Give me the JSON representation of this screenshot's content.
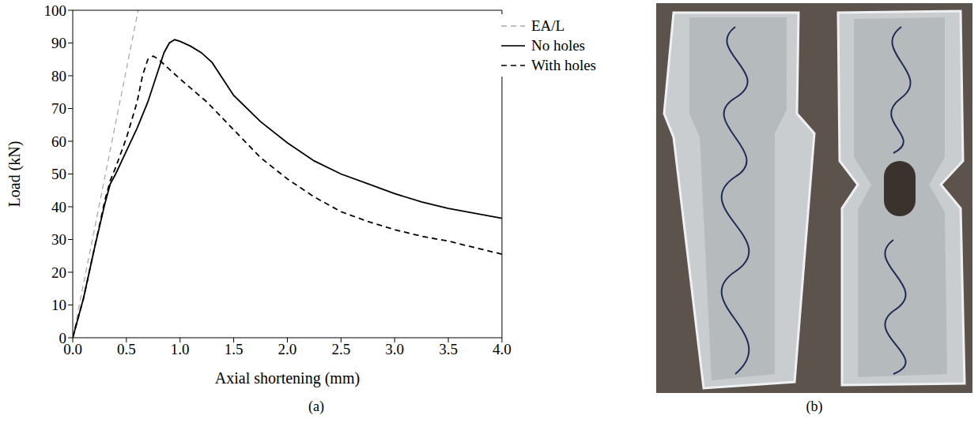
{
  "chart_data": {
    "type": "line",
    "x_label": "Axial shortening (mm)",
    "y_label": "Load (kN)",
    "xlim": [
      0,
      4
    ],
    "xticks": [
      {
        "value": 0,
        "label": "0.0"
      },
      0.5,
      {
        "value": 1,
        "label": "1.0"
      },
      1.5,
      {
        "value": 2,
        "label": "2.0"
      },
      2.5,
      {
        "value": 3,
        "label": "3.0"
      },
      3.5,
      {
        "value": 4,
        "label": "4.0"
      }
    ],
    "ylim": [
      0,
      100
    ],
    "yticks": [
      0,
      10,
      20,
      30,
      40,
      50,
      60,
      70,
      80,
      90,
      100
    ],
    "grid": false,
    "legend": "upper right",
    "series": [
      {
        "name": "EA/L",
        "color": "#aaaaaa",
        "line_style": "dashed",
        "x": [
          0,
          0.61
        ],
        "values": [
          0,
          100
        ]
      },
      {
        "name": "No holes",
        "color": "#000000",
        "line_style": "solid",
        "x": [
          0,
          0.05,
          0.1,
          0.2,
          0.3,
          0.35,
          0.4,
          0.5,
          0.6,
          0.7,
          0.8,
          0.85,
          0.9,
          0.95,
          1.0,
          1.1,
          1.2,
          1.3,
          1.4,
          1.5,
          1.75,
          2.0,
          2.25,
          2.5,
          2.75,
          3.0,
          3.25,
          3.5,
          3.75,
          4.0
        ],
        "values": [
          0,
          6,
          12,
          27,
          41,
          47,
          50,
          57,
          64,
          72,
          82,
          87,
          90,
          91,
          90.5,
          89,
          87,
          84,
          79,
          74,
          66,
          59.5,
          54,
          50,
          47,
          44,
          41.5,
          39.5,
          38,
          36.5
        ]
      },
      {
        "name": "With holes",
        "color": "#000000",
        "line_style": "dashed",
        "x": [
          0,
          0.1,
          0.2,
          0.3,
          0.35,
          0.4,
          0.5,
          0.6,
          0.65,
          0.7,
          0.75,
          0.8,
          0.9,
          1.0,
          1.25,
          1.5,
          1.75,
          2.0,
          2.25,
          2.5,
          2.75,
          3.0,
          3.25,
          3.5,
          3.75,
          4.0
        ],
        "values": [
          0,
          12,
          27,
          42,
          48,
          52,
          61,
          72,
          80,
          85,
          86,
          85,
          82,
          79,
          72,
          63.5,
          55,
          48.5,
          43,
          38.5,
          35.5,
          33,
          31,
          29.5,
          27.5,
          25.5
        ]
      }
    ]
  },
  "captions": [
    "(a)",
    "(b)"
  ]
}
